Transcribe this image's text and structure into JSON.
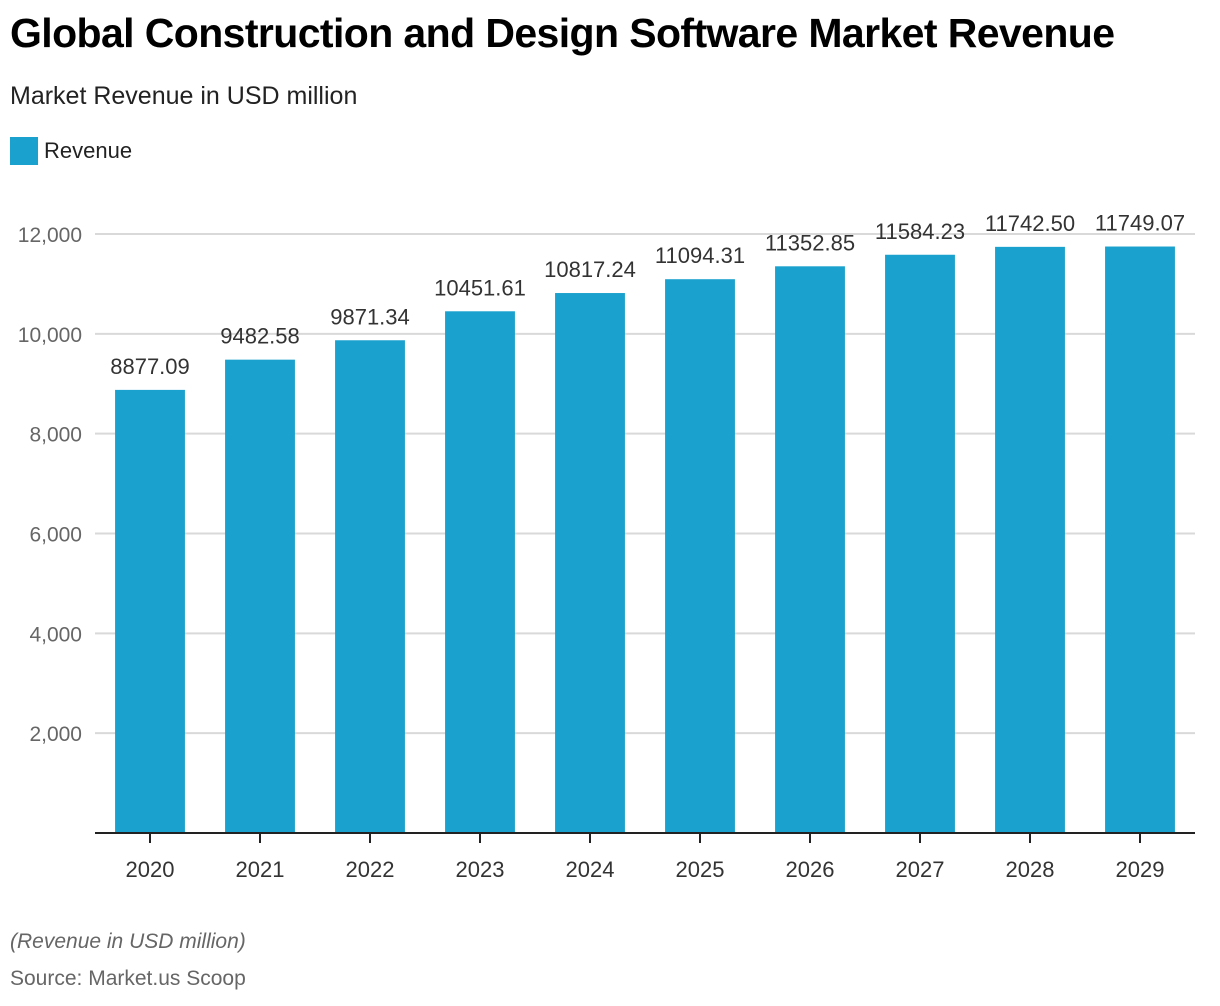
{
  "header": {
    "title": "Global Construction and Design Software Market Revenue",
    "subtitle": "Market Revenue in USD million"
  },
  "legend": {
    "items": [
      {
        "label": "Revenue",
        "color": "#1aa1cd"
      }
    ]
  },
  "footer": {
    "note": "(Revenue in USD million)",
    "source": "Source: Market.us Scoop"
  },
  "chart_data": {
    "type": "bar",
    "title": "Global Construction and Design Software Market Revenue",
    "subtitle": "Market Revenue in USD million",
    "xlabel": "",
    "ylabel": "",
    "categories": [
      "2020",
      "2021",
      "2022",
      "2023",
      "2024",
      "2025",
      "2026",
      "2027",
      "2028",
      "2029"
    ],
    "series": [
      {
        "name": "Revenue",
        "color": "#1aa1cd",
        "values": [
          8877.09,
          9482.58,
          9871.34,
          10451.61,
          10817.24,
          11094.31,
          11352.85,
          11584.23,
          11742.5,
          11749.07
        ],
        "labels": [
          "8877.09",
          "9482.58",
          "9871.34",
          "10451.61",
          "10817.24",
          "11094.31",
          "11352.85",
          "11584.23",
          "11742.50",
          "11749.07"
        ]
      }
    ],
    "ylim": [
      0,
      12000
    ],
    "yticks": [
      2000,
      4000,
      6000,
      8000,
      10000,
      12000
    ],
    "ytick_labels": [
      "2,000",
      "4,000",
      "6,000",
      "8,000",
      "10,000",
      "12,000"
    ],
    "grid": true,
    "legend_position": "top-left"
  }
}
